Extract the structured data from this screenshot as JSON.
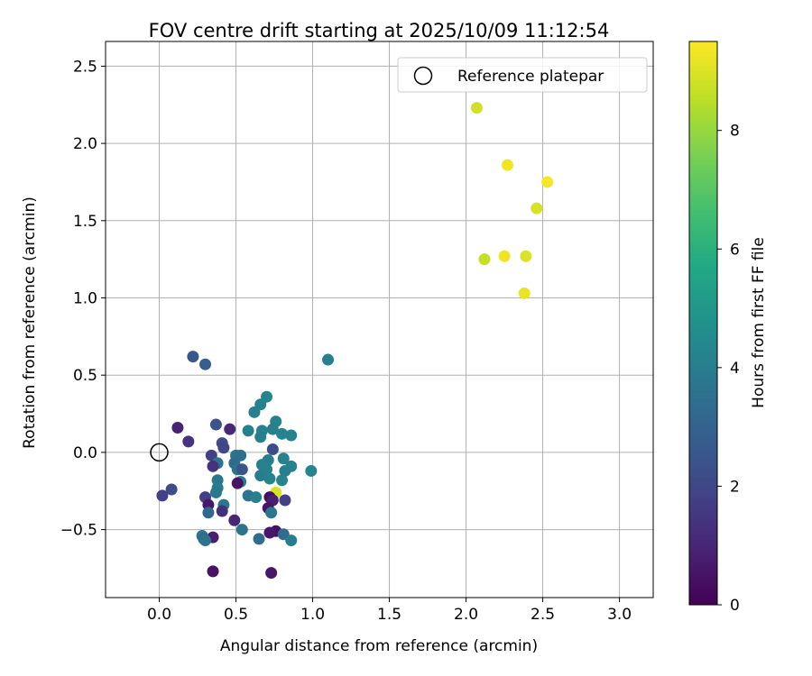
{
  "chart_data": {
    "type": "scatter",
    "title": "FOV centre drift starting at 2025/10/09 11:12:54",
    "xlabel": "Angular distance from reference (arcmin)",
    "ylabel": "Rotation from reference (arcmin)",
    "xlim": [
      -0.35,
      3.22
    ],
    "ylim": [
      -0.94,
      2.66
    ],
    "xticks": [
      "0.0",
      "0.5",
      "1.0",
      "1.5",
      "2.0",
      "2.5",
      "3.0"
    ],
    "xtick_values": [
      0,
      0.5,
      1,
      1.5,
      2,
      2.5,
      3
    ],
    "yticks": [
      "−0.5",
      "0.0",
      "0.5",
      "1.0",
      "1.5",
      "2.0",
      "2.5"
    ],
    "ytick_values": [
      -0.5,
      0,
      0.5,
      1,
      1.5,
      2,
      2.5
    ],
    "grid": true,
    "legend": {
      "position": "top-right",
      "entries": [
        {
          "label": "Reference platepar",
          "marker": "hollow-circle"
        }
      ]
    },
    "reference_point": {
      "x": 0.0,
      "y": 0.0
    },
    "colorbar": {
      "label": "Hours from first FF file",
      "colormap": "viridis",
      "range": [
        0,
        9.5
      ],
      "ticks": [
        "0",
        "2",
        "4",
        "6",
        "8"
      ],
      "tick_values": [
        0,
        2,
        4,
        6,
        8
      ]
    },
    "series": [
      {
        "name": "FOV centre",
        "points": [
          {
            "x": 2.07,
            "y": 2.23,
            "h": 8.8
          },
          {
            "x": 2.27,
            "y": 1.86,
            "h": 9.3
          },
          {
            "x": 2.53,
            "y": 1.75,
            "h": 9.4
          },
          {
            "x": 2.46,
            "y": 1.58,
            "h": 8.9
          },
          {
            "x": 2.12,
            "y": 1.25,
            "h": 8.7
          },
          {
            "x": 2.25,
            "y": 1.27,
            "h": 9.3
          },
          {
            "x": 2.39,
            "y": 1.27,
            "h": 9.0
          },
          {
            "x": 2.38,
            "y": 1.03,
            "h": 9.2
          },
          {
            "x": 1.1,
            "y": 0.6,
            "h": 4.1
          },
          {
            "x": 0.22,
            "y": 0.62,
            "h": 2.6
          },
          {
            "x": 0.3,
            "y": 0.57,
            "h": 2.8
          },
          {
            "x": 0.7,
            "y": 0.36,
            "h": 4.3
          },
          {
            "x": 0.66,
            "y": 0.31,
            "h": 4.2
          },
          {
            "x": 0.62,
            "y": 0.26,
            "h": 4.1
          },
          {
            "x": 0.76,
            "y": 0.2,
            "h": 4.2
          },
          {
            "x": 0.37,
            "y": 0.18,
            "h": 2.4
          },
          {
            "x": 0.46,
            "y": 0.15,
            "h": 1.1
          },
          {
            "x": 0.12,
            "y": 0.16,
            "h": 0.9
          },
          {
            "x": 0.58,
            "y": 0.14,
            "h": 4.1
          },
          {
            "x": 0.67,
            "y": 0.14,
            "h": 4.2
          },
          {
            "x": 0.74,
            "y": 0.15,
            "h": 4.1
          },
          {
            "x": 0.8,
            "y": 0.12,
            "h": 4.3
          },
          {
            "x": 0.86,
            "y": 0.11,
            "h": 4.2
          },
          {
            "x": 0.66,
            "y": 0.1,
            "h": 4.1
          },
          {
            "x": 0.19,
            "y": 0.07,
            "h": 1.4
          },
          {
            "x": 0.41,
            "y": 0.06,
            "h": 2.2
          },
          {
            "x": 0.42,
            "y": 0.03,
            "h": 2.0
          },
          {
            "x": 0.74,
            "y": 0.02,
            "h": 2.2
          },
          {
            "x": 0.34,
            "y": -0.02,
            "h": 1.8
          },
          {
            "x": 0.5,
            "y": -0.02,
            "h": 3.6
          },
          {
            "x": 0.53,
            "y": -0.02,
            "h": 3.5
          },
          {
            "x": 0.81,
            "y": -0.04,
            "h": 4.2
          },
          {
            "x": 0.71,
            "y": -0.05,
            "h": 4.0
          },
          {
            "x": 0.38,
            "y": -0.07,
            "h": 3.7
          },
          {
            "x": 0.49,
            "y": -0.07,
            "h": 3.3
          },
          {
            "x": 0.67,
            "y": -0.08,
            "h": 4.1
          },
          {
            "x": 0.86,
            "y": -0.09,
            "h": 4.2
          },
          {
            "x": 0.35,
            "y": -0.09,
            "h": 1.4
          },
          {
            "x": 0.51,
            "y": -0.11,
            "h": 3.6
          },
          {
            "x": 0.54,
            "y": -0.11,
            "h": 2.5
          },
          {
            "x": 0.7,
            "y": -0.11,
            "h": 4.2
          },
          {
            "x": 0.82,
            "y": -0.12,
            "h": 4.1
          },
          {
            "x": 0.99,
            "y": -0.12,
            "h": 4.3
          },
          {
            "x": 0.66,
            "y": -0.15,
            "h": 4.0
          },
          {
            "x": 0.72,
            "y": -0.17,
            "h": 4.2
          },
          {
            "x": 0.8,
            "y": -0.18,
            "h": 4.3
          },
          {
            "x": 0.38,
            "y": -0.18,
            "h": 3.8
          },
          {
            "x": 0.53,
            "y": -0.19,
            "h": 3.9
          },
          {
            "x": 0.51,
            "y": -0.2,
            "h": 0.5
          },
          {
            "x": 0.38,
            "y": -0.23,
            "h": 3.9
          },
          {
            "x": 0.08,
            "y": -0.24,
            "h": 2.2
          },
          {
            "x": 0.37,
            "y": -0.26,
            "h": 3.8
          },
          {
            "x": 0.76,
            "y": -0.26,
            "h": 8.9
          },
          {
            "x": 0.02,
            "y": -0.28,
            "h": 1.8
          },
          {
            "x": 0.58,
            "y": -0.28,
            "h": 3.7
          },
          {
            "x": 0.63,
            "y": -0.29,
            "h": 4.1
          },
          {
            "x": 0.3,
            "y": -0.29,
            "h": 1.8
          },
          {
            "x": 0.72,
            "y": -0.29,
            "h": 0.4
          },
          {
            "x": 0.82,
            "y": -0.31,
            "h": 1.8
          },
          {
            "x": 0.74,
            "y": -0.31,
            "h": 0.8
          },
          {
            "x": 0.32,
            "y": -0.34,
            "h": 0.6
          },
          {
            "x": 0.42,
            "y": -0.34,
            "h": 3.8
          },
          {
            "x": 0.71,
            "y": -0.36,
            "h": 0.5
          },
          {
            "x": 0.41,
            "y": -0.38,
            "h": 1.3
          },
          {
            "x": 0.73,
            "y": -0.39,
            "h": 3.8
          },
          {
            "x": 0.32,
            "y": -0.39,
            "h": 3.2
          },
          {
            "x": 0.49,
            "y": -0.44,
            "h": 1.0
          },
          {
            "x": 0.54,
            "y": -0.5,
            "h": 3.6
          },
          {
            "x": 0.76,
            "y": -0.51,
            "h": 0.4
          },
          {
            "x": 0.72,
            "y": -0.52,
            "h": 0.6
          },
          {
            "x": 0.81,
            "y": -0.53,
            "h": 3.4
          },
          {
            "x": 0.28,
            "y": -0.54,
            "h": 3.7
          },
          {
            "x": 0.35,
            "y": -0.55,
            "h": 0.8
          },
          {
            "x": 0.29,
            "y": -0.56,
            "h": 3.2
          },
          {
            "x": 0.3,
            "y": -0.57,
            "h": 3.6
          },
          {
            "x": 0.65,
            "y": -0.56,
            "h": 3.4
          },
          {
            "x": 0.86,
            "y": -0.57,
            "h": 3.9
          },
          {
            "x": 0.35,
            "y": -0.77,
            "h": 0.5
          },
          {
            "x": 0.73,
            "y": -0.78,
            "h": 0.6
          }
        ]
      }
    ]
  }
}
